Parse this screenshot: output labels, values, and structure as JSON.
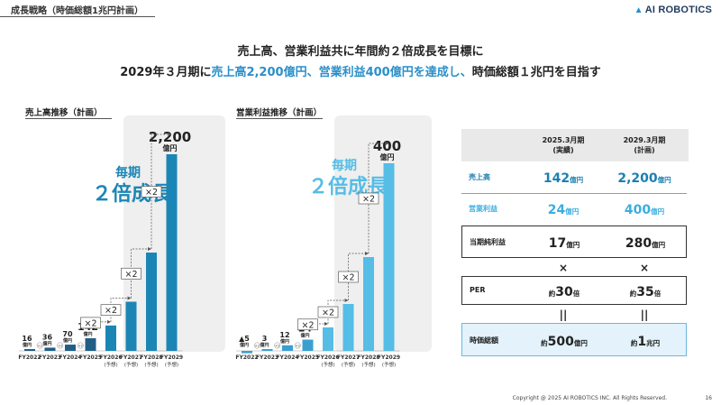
{
  "header": {
    "title": "成長戦略（時価総額1兆円計画）",
    "logo_text": "AI ROBOTICS",
    "logo_mark": "▲"
  },
  "headline": {
    "line1": "売上高、営業利益共に年間約２倍成長を目標に",
    "line2_prefix": "2029年３月期に",
    "line2_highlight": "売上高2,200億円、営業利益400億円を達成し、",
    "line2_suffix": "時価総額１兆円を目指す"
  },
  "chart_data": [
    {
      "type": "bar",
      "title": "売上高推移（計画）",
      "categories": [
        "FY2022",
        "FY2023",
        "FY2024",
        "FY2025",
        "FY2026",
        "FY2027",
        "FY2028",
        "FY2029"
      ],
      "category_notes": [
        "",
        "",
        "",
        "",
        "(予想)",
        "(予想)",
        "(予想)",
        "(予想)"
      ],
      "values": [
        16,
        36,
        70,
        142,
        284,
        550,
        1100,
        2200
      ],
      "value_labels": [
        "16",
        "36",
        "70",
        "142",
        "",
        "",
        "",
        "2,200"
      ],
      "unit_label": "億円",
      "small_multipliers": [
        "×2",
        "×2",
        "×2"
      ],
      "multipliers": [
        "×2",
        "×2",
        "×2",
        "×2"
      ],
      "highlight_text": [
        "毎期",
        "２倍成長"
      ],
      "colors": {
        "actual": "#1f5f86",
        "forecast": "#1b86b5",
        "highlight_bg": "#efefef"
      }
    },
    {
      "type": "bar",
      "title": "営業利益推移（計画）",
      "categories": [
        "FY2022",
        "FY2023",
        "FY2024",
        "FY2025",
        "FY2026",
        "FY2027",
        "FY2028",
        "FY2029"
      ],
      "category_notes": [
        "",
        "",
        "",
        "",
        "(予想)",
        "(予想)",
        "(予想)",
        "(予想)"
      ],
      "values": [
        -5,
        3,
        12,
        24,
        50,
        100,
        200,
        400
      ],
      "value_labels": [
        "▲5",
        "3",
        "12",
        "24",
        "",
        "",
        "",
        "400"
      ],
      "unit_label": "億円",
      "small_multipliers": [
        "×2",
        "×2",
        "×2"
      ],
      "multipliers": [
        "×2",
        "×2",
        "×2",
        "×2"
      ],
      "highlight_text": [
        "毎期",
        "２倍成長"
      ],
      "colors": {
        "actual": "#3a9fd0",
        "forecast": "#55bde6",
        "highlight_bg": "#efefef"
      }
    }
  ],
  "table": {
    "col1_header": [
      "2025.3月期",
      "(実績)"
    ],
    "col2_header": [
      "2029.3月期",
      "(計画)"
    ],
    "rows": [
      {
        "label": "売上高",
        "v1": "142",
        "u1": "億円",
        "p1": "",
        "v2": "2,200",
        "u2": "億円",
        "p2": "",
        "style": "blue"
      },
      {
        "label": "営業利益",
        "v1": "24",
        "u1": "億円",
        "p1": "",
        "v2": "400",
        "u2": "億円",
        "p2": "",
        "style": "lightblue"
      },
      {
        "label": "当期純利益",
        "v1": "17",
        "u1": "億円",
        "p1": "",
        "v2": "280",
        "u2": "億円",
        "p2": "",
        "style": "boxed"
      },
      {
        "label": "",
        "v1": "×",
        "u1": "",
        "p1": "",
        "v2": "×",
        "u2": "",
        "p2": "",
        "style": "op"
      },
      {
        "label": "PER",
        "v1": "30",
        "u1": "倍",
        "p1": "約",
        "v2": "35",
        "u2": "倍",
        "p2": "約",
        "style": "boxed"
      },
      {
        "label": "",
        "v1": "||",
        "u1": "",
        "p1": "",
        "v2": "||",
        "u2": "",
        "p2": "",
        "style": "op"
      },
      {
        "label": "時価総額",
        "v1": "500",
        "u1": "億円",
        "p1": "約",
        "v2": "1",
        "u2": "兆円",
        "p2": "約",
        "style": "highlight"
      }
    ],
    "colors": {
      "blue": "#1b7fb3",
      "lightblue": "#3aaee0",
      "highlight_bg": "#e3f2fb",
      "header_bg": "#e9e9e9"
    }
  },
  "footer": {
    "copyright": "Copyright @ 2025 AI ROBOTICS INC. All Rights Reserved.",
    "page": "16"
  }
}
